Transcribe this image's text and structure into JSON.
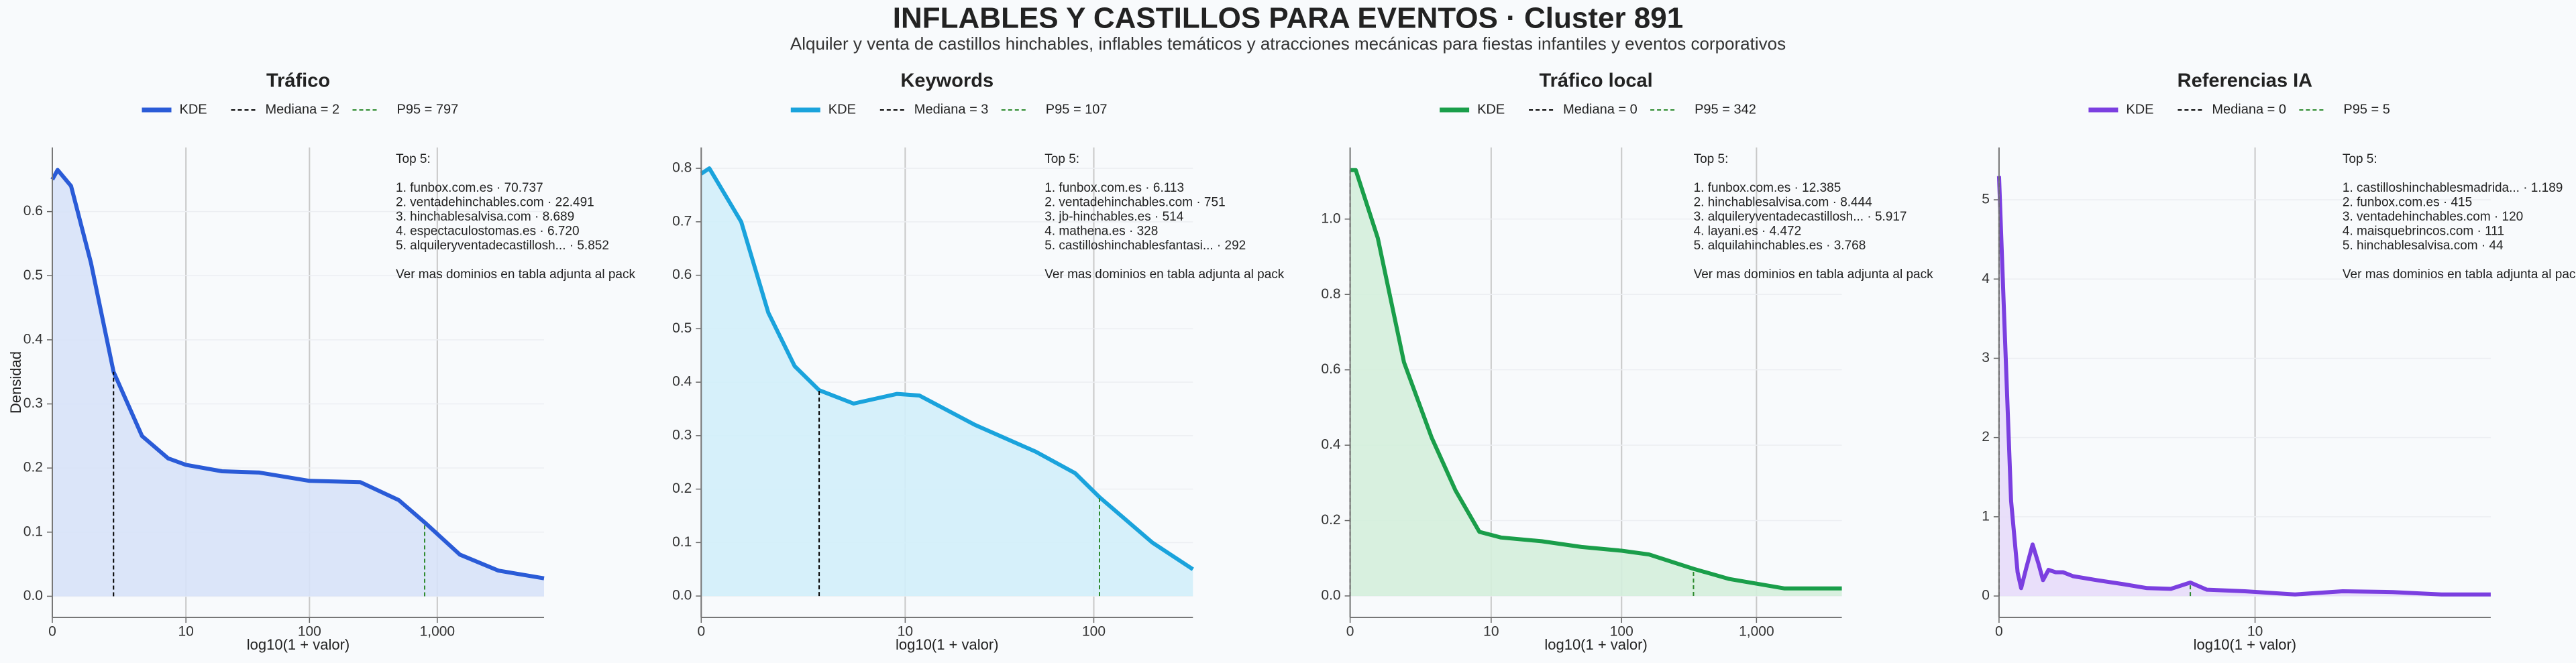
{
  "title": "INFLABLES Y CASTILLOS PARA EVENTOS · Cluster 891",
  "subtitle": "Alquiler y venta de castillos hinchables, inflables temáticos y atracciones mecánicas para fiestas infantiles y eventos corporativos",
  "chart_data": [
    {
      "type": "area",
      "title": "Tráfico",
      "xlabel": "log10(1 + valor)",
      "ylabel": "Densidad",
      "xscale": "log1p",
      "grid": true,
      "series": [
        {
          "name": "KDE",
          "color": "#2a5bd7",
          "fill": "#d7e2f8",
          "x": [
            0,
            0.1,
            0.4,
            1,
            2,
            4,
            7,
            10,
            20,
            40,
            100,
            250,
            500,
            800,
            1500,
            3000,
            6800
          ],
          "values": [
            0.65,
            0.665,
            0.64,
            0.52,
            0.35,
            0.25,
            0.215,
            0.205,
            0.195,
            0.193,
            0.18,
            0.178,
            0.15,
            0.115,
            0.065,
            0.04,
            0.028
          ]
        }
      ],
      "median": {
        "value": 2,
        "label": "Mediana = 2",
        "color": "#000000"
      },
      "p95": {
        "value": 797,
        "label": "P95 = 797",
        "color": "#2e8b2e"
      },
      "xlim": [
        0,
        6800
      ],
      "xticks": [
        0,
        10,
        100,
        {
          "value": 1000,
          "label": "1,000"
        }
      ],
      "ylim": [
        -0.033,
        0.7
      ],
      "yticks": [
        {
          "value": 0,
          "label": "0.0"
        },
        0.1,
        0.2,
        0.3,
        0.4,
        0.5,
        0.6
      ],
      "annotation": {
        "heading": "Top 5:",
        "items": [
          "1. funbox.com.es · 70.737",
          "2. ventadehinchables.com · 22.491",
          "3. hinchablesalvisa.com · 8.689",
          "4. espectaculostomas.es · 6.720",
          "5. alquileryventadecastillosh... · 5.852"
        ],
        "footer": "Ver mas dominios en tabla adjunta al pack"
      }
    },
    {
      "type": "area",
      "title": "Keywords",
      "xlabel": "log10(1 + valor)",
      "xscale": "log1p",
      "grid": true,
      "series": [
        {
          "name": "KDE",
          "color": "#1aa3dc",
          "fill": "#d2eefa",
          "x": [
            0,
            0.1,
            0.6,
            1.2,
            2,
            3,
            5,
            9,
            12,
            24,
            50,
            80,
            107,
            200,
            323
          ],
          "values": [
            0.79,
            0.8,
            0.7,
            0.53,
            0.43,
            0.385,
            0.36,
            0.378,
            0.375,
            0.32,
            0.27,
            0.23,
            0.185,
            0.1,
            0.05
          ]
        }
      ],
      "median": {
        "value": 3,
        "label": "Mediana = 3",
        "color": "#000000"
      },
      "p95": {
        "value": 107,
        "label": "P95 = 107",
        "color": "#2e8b2e"
      },
      "xlim": [
        0,
        323
      ],
      "xticks": [
        0,
        10,
        100
      ],
      "ylim": [
        -0.04,
        0.839
      ],
      "yticks": [
        {
          "value": 0,
          "label": "0.0"
        },
        0.1,
        0.2,
        0.3,
        0.4,
        0.5,
        0.6,
        0.7,
        0.8
      ],
      "annotation": {
        "heading": "Top 5:",
        "items": [
          "1. funbox.com.es · 6.113",
          "2. ventadehinchables.com · 751",
          "3. jb-hinchables.es · 514",
          "4. mathena.es · 328",
          "5. castilloshinchablesfantasi... · 292"
        ],
        "footer": "Ver mas dominios en tabla adjunta al pack"
      }
    },
    {
      "type": "area",
      "title": "Tráfico local",
      "xlabel": "log10(1 + valor)",
      "xscale": "log1p",
      "grid": true,
      "series": [
        {
          "name": "KDE",
          "color": "#1a9e4a",
          "fill": "#d4eedc",
          "x": [
            0,
            0.1,
            0.6,
            1.5,
            3,
            5,
            8,
            12,
            25,
            50,
            100,
            160,
            342,
            630,
            1600,
            4270
          ],
          "values": [
            1.13,
            1.13,
            0.95,
            0.62,
            0.42,
            0.28,
            0.17,
            0.155,
            0.145,
            0.13,
            0.12,
            0.11,
            0.072,
            0.045,
            0.02,
            0.02
          ]
        }
      ],
      "median": {
        "value": 0,
        "label": "Mediana = 0",
        "color": "#000000"
      },
      "p95": {
        "value": 342,
        "label": "P95 = 342",
        "color": "#2e8b2e"
      },
      "xlim": [
        0,
        4270
      ],
      "xticks": [
        0,
        10,
        100,
        {
          "value": 1000,
          "label": "1,000"
        }
      ],
      "ylim": [
        -0.057,
        1.19
      ],
      "yticks": [
        {
          "value": 0,
          "label": "0.0"
        },
        0.2,
        0.4,
        0.6,
        0.8,
        {
          "value": 1,
          "label": "1.0"
        }
      ],
      "annotation": {
        "heading": "Top 5:",
        "items": [
          "1. funbox.com.es · 12.385",
          "2. hinchablesalvisa.com · 8.444",
          "3. alquileryventadecastillosh... · 5.917",
          "4. layani.es · 4.472",
          "5. alquilahinchables.es · 3.768"
        ],
        "footer": "Ver mas dominios en tabla adjunta al pack"
      }
    },
    {
      "type": "area",
      "title": "Referencias IA",
      "xlabel": "log10(1 + valor)",
      "xscale": "log1p",
      "grid": true,
      "series": [
        {
          "name": "KDE",
          "color": "#7b3fe0",
          "fill": "#e7dbfa",
          "x": [
            0,
            0.05,
            0.12,
            0.19,
            0.23,
            0.29,
            0.37,
            0.45,
            0.51,
            0.59,
            0.7,
            0.82,
            1,
            1.5,
            2.2,
            3,
            4,
            5,
            6,
            9,
            15,
            24,
            39,
            62,
            99
          ],
          "values": [
            5.3,
            3.5,
            1.2,
            0.3,
            0.1,
            0.35,
            0.65,
            0.4,
            0.2,
            0.33,
            0.3,
            0.3,
            0.25,
            0.2,
            0.15,
            0.1,
            0.09,
            0.17,
            0.08,
            0.06,
            0.02,
            0.06,
            0.05,
            0.02,
            0.02
          ]
        }
      ],
      "median": {
        "value": 0,
        "label": "Mediana = 0",
        "color": "#000000"
      },
      "p95": {
        "value": 5,
        "label": "P95 = 5",
        "color": "#2e8b2e"
      },
      "xlim": [
        0,
        99
      ],
      "xticks": [
        0,
        10
      ],
      "ylim": [
        -0.27,
        5.66
      ],
      "yticks": [
        0,
        1,
        2,
        3,
        4,
        5
      ],
      "annotation": {
        "heading": "Top 5:",
        "items": [
          "1. castilloshinchablesmadrida... · 1.189",
          "2. funbox.com.es · 415",
          "3. ventadehinchables.com · 120",
          "4. maisquebrincos.com · 111",
          "5. hinchablesalvisa.com · 44"
        ],
        "footer": "Ver mas dominios en tabla adjunta al pack"
      }
    }
  ]
}
